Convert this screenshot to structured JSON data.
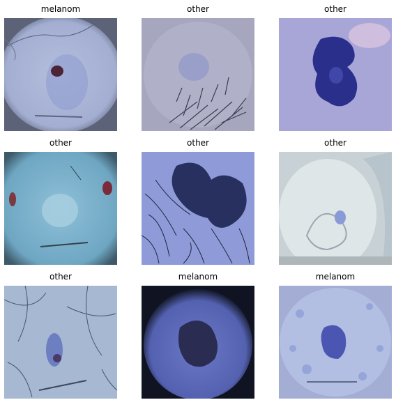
{
  "grid": {
    "panels": [
      {
        "label": "melanom",
        "image": "dermoscopy-lesion-small-dark-center"
      },
      {
        "label": "other",
        "image": "dermoscopy-lesion-faint-with-hair"
      },
      {
        "label": "other",
        "image": "dermoscopy-lesion-dark-blue-large"
      },
      {
        "label": "other",
        "image": "dermoscopy-lesion-pale-with-red-spots"
      },
      {
        "label": "other",
        "image": "dermoscopy-lesion-dark-with-dense-hair"
      },
      {
        "label": "other",
        "image": "dermoscopy-lesion-glossy-pale"
      },
      {
        "label": "other",
        "image": "dermoscopy-lesion-small-with-hair"
      },
      {
        "label": "melanom",
        "image": "dermoscopy-lesion-dark-vignetted"
      },
      {
        "label": "melanom",
        "image": "dermoscopy-lesion-mottled-blue"
      }
    ]
  }
}
